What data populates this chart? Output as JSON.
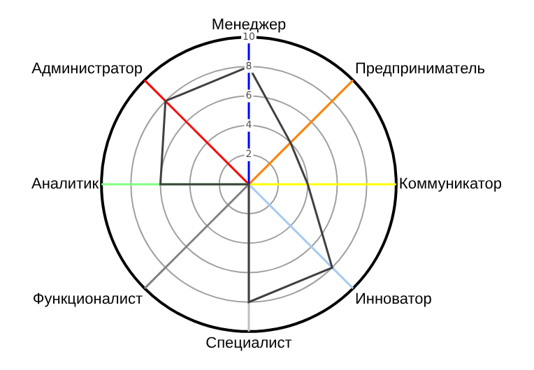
{
  "chart_data": {
    "type": "radar",
    "categories": [
      "Менеджер",
      "Предприниматель",
      "Коммуникатор",
      "Инноватор",
      "Специалист",
      "Функционалист",
      "Аналитик",
      "Администратор"
    ],
    "colors": [
      "#0000ff",
      "#ff8000",
      "#ffff00",
      "#a6caf0",
      "#c0c0c0",
      "#808080",
      "#80ff80",
      "#ff0000"
    ],
    "series": [
      {
        "color": "#404040",
        "values": [
          8,
          4,
          4,
          8,
          8,
          0,
          6,
          8
        ]
      }
    ],
    "ylim": [
      0,
      10
    ],
    "yticks": [
      2,
      4,
      6,
      8,
      10
    ],
    "grid": true,
    "legend": false,
    "marker": "none",
    "line_style": "solid"
  }
}
